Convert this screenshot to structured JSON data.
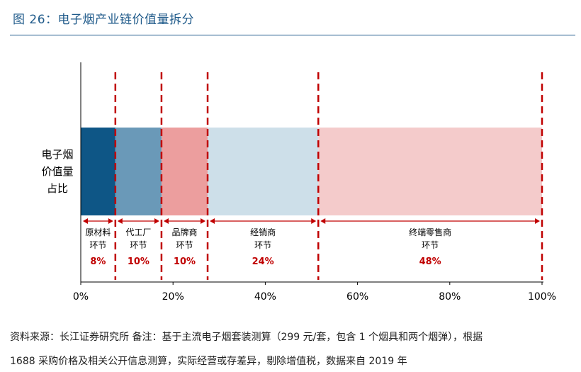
{
  "figure_title": "图 26：电子烟产业链价值量拆分",
  "footer": {
    "line1": "资料来源：长江证券研究所  备注：基于主流电子烟套装测算（299 元/套，包含 1 个烟具和两个烟弹），根据",
    "line2": "1688 采购价格及相关公开信息测算，实际经营或存差异，剔除增值税，数据来自 2019 年"
  },
  "chart_data": {
    "type": "bar",
    "orientation": "horizontal-stacked",
    "category_label_lines": [
      "电子烟",
      "价值量",
      "占比"
    ],
    "xlim": [
      0,
      100
    ],
    "x_ticks": [
      0,
      20,
      40,
      60,
      80,
      100
    ],
    "x_tick_labels": [
      "0%",
      "20%",
      "40%",
      "60%",
      "80%",
      "100%"
    ],
    "segments": [
      {
        "label_lines": [
          "原材料",
          "环节"
        ],
        "value_label": "8%",
        "start": 0,
        "end": 7.5,
        "color": "#0e5686"
      },
      {
        "label_lines": [
          "代工厂",
          "环节"
        ],
        "value_label": "10%",
        "start": 7.5,
        "end": 17.5,
        "color": "#6a99b8"
      },
      {
        "label_lines": [
          "品牌商",
          "环节"
        ],
        "value_label": "10%",
        "start": 17.5,
        "end": 27.5,
        "color": "#ec9e9e"
      },
      {
        "label_lines": [
          "经销商",
          "环节"
        ],
        "value_label": "24%",
        "start": 27.5,
        "end": 51.5,
        "color": "#cddfe9"
      },
      {
        "label_lines": [
          "终端零售商",
          "环节"
        ],
        "value_label": "48%",
        "start": 51.5,
        "end": 100,
        "color": "#f4cbcb"
      }
    ],
    "colors": {
      "divider": "#c00000",
      "value_text": "#c00000",
      "axis": "#000000"
    }
  }
}
